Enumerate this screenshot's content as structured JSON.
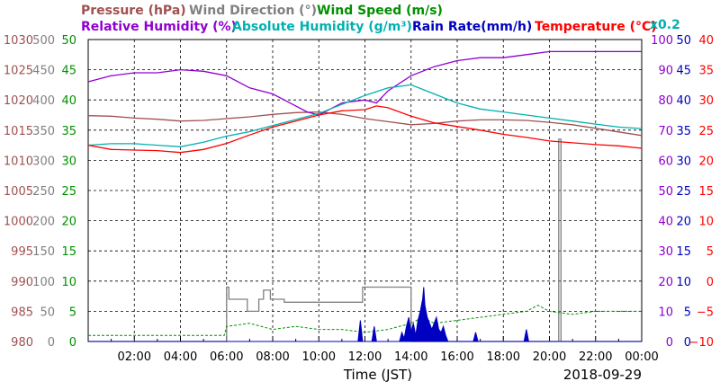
{
  "chart_data": {
    "type": "line",
    "title": "",
    "legend": {
      "row1": [
        {
          "label": "Pressure (hPa)",
          "color": "#a05050"
        },
        {
          "label": "Wind Direction (°)",
          "color": "#808080"
        },
        {
          "label": "Wind Speed (m/s)",
          "color": "#009000"
        }
      ],
      "row2": [
        {
          "label": "Relative Humidity (%)",
          "color": "#9000d0"
        },
        {
          "label": "Absolute Humidity (g/m³)",
          "color": "#00b0b0"
        },
        {
          "label": "Rain Rate(mm/h)",
          "color": "#0000c0"
        },
        {
          "label": "Temperature (°C)",
          "color": "#ff0000"
        }
      ],
      "abs_humidity_multiplier": "x0.2"
    },
    "xlabel": "Time (JST)",
    "date": "2018-09-29",
    "x_unit": "hours",
    "xlim": [
      0,
      24
    ],
    "x_ticks": [
      {
        "x": 2,
        "label": "02:00"
      },
      {
        "x": 4,
        "label": "04:00"
      },
      {
        "x": 6,
        "label": "06:00"
      },
      {
        "x": 8,
        "label": "08:00"
      },
      {
        "x": 10,
        "label": "10:00"
      },
      {
        "x": 12,
        "label": "12:00"
      },
      {
        "x": 14,
        "label": "14:00"
      },
      {
        "x": 16,
        "label": "16:00"
      },
      {
        "x": 18,
        "label": "18:00"
      },
      {
        "x": 20,
        "label": "20:00"
      },
      {
        "x": 22,
        "label": "22:00"
      },
      {
        "x": 24,
        "label": "00:00"
      }
    ],
    "axes": {
      "pressure": {
        "color": "#a05050",
        "labels": [
          "980",
          "985",
          "990",
          "995",
          "1000",
          "1005",
          "1010",
          "1015",
          "1020",
          "1025",
          "1030"
        ]
      },
      "wind_direction": {
        "color": "#808080",
        "labels": [
          "0",
          "50",
          "100",
          "150",
          "200",
          "250",
          "300",
          "350",
          "400",
          "450",
          "500"
        ]
      },
      "wind_speed": {
        "color": "#009000",
        "labels": [
          "0",
          "5",
          "10",
          "15",
          "20",
          "25",
          "30",
          "35",
          "40",
          "45",
          "50"
        ]
      },
      "relative_humidity": {
        "color": "#9000d0",
        "labels": [
          "0",
          "10",
          "20",
          "30",
          "40",
          "50",
          "60",
          "70",
          "80",
          "90",
          "100"
        ]
      },
      "rain_rate": {
        "color": "#0000c0",
        "labels": [
          "0",
          "5",
          "10",
          "15",
          "20",
          "25",
          "30",
          "35",
          "40",
          "45",
          "50"
        ]
      },
      "temperature": {
        "color": "#ff0000",
        "labels": [
          "−10",
          "−5",
          "0",
          "5",
          "10",
          "15",
          "20",
          "25",
          "30",
          "35",
          "40"
        ]
      }
    },
    "series": [
      {
        "name": "Pressure (hPa)",
        "color": "#a05050",
        "axis": "pressure",
        "ylim": [
          980,
          1030
        ],
        "style": "line",
        "x": [
          0,
          1,
          2,
          3,
          4,
          5,
          6,
          7,
          8,
          9,
          10,
          11,
          12,
          13,
          14,
          15,
          16,
          17,
          18,
          19,
          20,
          21,
          22,
          23,
          24
        ],
        "y": [
          1017.4,
          1017.3,
          1017.0,
          1016.8,
          1016.5,
          1016.6,
          1016.9,
          1017.2,
          1017.6,
          1017.9,
          1018.0,
          1017.6,
          1016.9,
          1016.4,
          1015.9,
          1016.1,
          1016.5,
          1016.7,
          1016.7,
          1016.6,
          1016.3,
          1015.9,
          1015.3,
          1014.7,
          1014.1
        ]
      },
      {
        "name": "Wind Direction (°)",
        "color": "#808080",
        "axis": "wind_direction",
        "ylim": [
          0,
          500
        ],
        "style": "step",
        "x": [
          0,
          5.95,
          6.0,
          6.1,
          6.5,
          6.9,
          7.4,
          7.6,
          7.9,
          8.2,
          8.5,
          9.0,
          11.5,
          11.9,
          12.3,
          13.9,
          14.0,
          20.3,
          20.4,
          20.5,
          20.6,
          24
        ],
        "y": [
          0,
          0,
          90,
          70,
          70,
          50,
          70,
          85,
          70,
          70,
          65,
          65,
          65,
          90,
          90,
          90,
          0,
          0,
          335,
          0,
          0,
          0
        ]
      },
      {
        "name": "Wind Speed (m/s)",
        "color": "#009000",
        "axis": "wind_speed",
        "ylim": [
          0,
          50
        ],
        "style": "dashed",
        "x": [
          0,
          1,
          2,
          3,
          4,
          5,
          5.9,
          6,
          7,
          8,
          9,
          10,
          11,
          12,
          13,
          14,
          14.5,
          15,
          16,
          17,
          18,
          19,
          19.5,
          20,
          21,
          22,
          23,
          24
        ],
        "y": [
          1,
          1,
          1,
          1,
          1,
          1,
          1,
          2.5,
          3,
          2,
          2.5,
          2,
          2,
          1.5,
          2,
          3,
          4,
          3,
          3.5,
          4,
          4.5,
          5,
          6,
          5,
          4.5,
          5,
          5,
          5
        ]
      },
      {
        "name": "Relative Humidity (%)",
        "color": "#9000d0",
        "axis": "relative_humidity",
        "ylim": [
          0,
          100
        ],
        "style": "line",
        "x": [
          0,
          1,
          2,
          3,
          4,
          5,
          6,
          7,
          8,
          8.5,
          9,
          9.5,
          10,
          11,
          12,
          12.5,
          13,
          14,
          15,
          16,
          17,
          18,
          19,
          20,
          21,
          22,
          23,
          24
        ],
        "y": [
          86,
          88,
          89,
          89,
          90,
          89.5,
          88,
          84,
          82,
          80,
          78,
          76,
          75,
          79,
          80,
          79,
          83,
          88,
          91,
          93,
          94,
          94,
          95,
          96,
          96,
          96,
          96,
          96
        ]
      },
      {
        "name": "Absolute Humidity (g/m³)",
        "color": "#00b0b0",
        "axis": "relative_humidity",
        "ylim": [
          0,
          100
        ],
        "style": "line",
        "x": [
          0,
          1,
          2,
          3,
          4,
          5,
          6,
          7,
          8,
          9,
          10,
          11,
          12,
          13,
          14,
          15,
          16,
          17,
          18,
          19,
          20,
          21,
          22,
          23,
          24
        ],
        "y": [
          65,
          65.5,
          65.5,
          65,
          64.5,
          66,
          68,
          69.5,
          71.5,
          73.5,
          75.5,
          78.5,
          81.5,
          84,
          85,
          82,
          79,
          77,
          76,
          75,
          74,
          73,
          72,
          71,
          70.5
        ]
      },
      {
        "name": "Rain Rate(mm/h)",
        "color": "#0000c0",
        "axis": "rain_rate",
        "ylim": [
          0,
          50
        ],
        "style": "area",
        "x": [
          0,
          11.7,
          11.8,
          11.9,
          12.3,
          12.4,
          12.5,
          13.5,
          13.6,
          13.7,
          13.8,
          13.9,
          14.0,
          14.1,
          14.2,
          14.3,
          14.4,
          14.5,
          14.55,
          14.6,
          14.7,
          14.8,
          14.9,
          15.0,
          15.1,
          15.2,
          15.3,
          15.4,
          15.5,
          15.6,
          16.7,
          16.8,
          16.9,
          18.9,
          19.0,
          19.1,
          24
        ],
        "y": [
          0,
          0,
          3.5,
          0,
          0,
          2.5,
          0,
          0,
          1.5,
          0.5,
          2.5,
          4,
          1.5,
          3,
          1,
          3.5,
          5,
          7,
          9,
          6,
          4,
          3,
          2,
          3,
          4,
          2,
          1.5,
          2.5,
          1,
          0,
          0,
          1.5,
          0,
          0,
          2,
          0,
          0
        ]
      },
      {
        "name": "Temperature (°C)",
        "color": "#ff0000",
        "axis": "temperature",
        "ylim": [
          -10,
          40
        ],
        "style": "line",
        "x": [
          0,
          1,
          2,
          3,
          4,
          5,
          6,
          7,
          8,
          9,
          10,
          11,
          12,
          12.5,
          13,
          14,
          15,
          16,
          17,
          18,
          19,
          20,
          21,
          22,
          23,
          24
        ],
        "y": [
          22.5,
          21.8,
          21.7,
          21.6,
          21.3,
          21.8,
          22.8,
          24.2,
          25.5,
          26.5,
          27.5,
          28.2,
          28.4,
          29.0,
          28.7,
          27.3,
          26.2,
          25.6,
          25.0,
          24.3,
          23.8,
          23.2,
          22.9,
          22.6,
          22.4,
          22.0
        ]
      }
    ],
    "grid": true
  }
}
